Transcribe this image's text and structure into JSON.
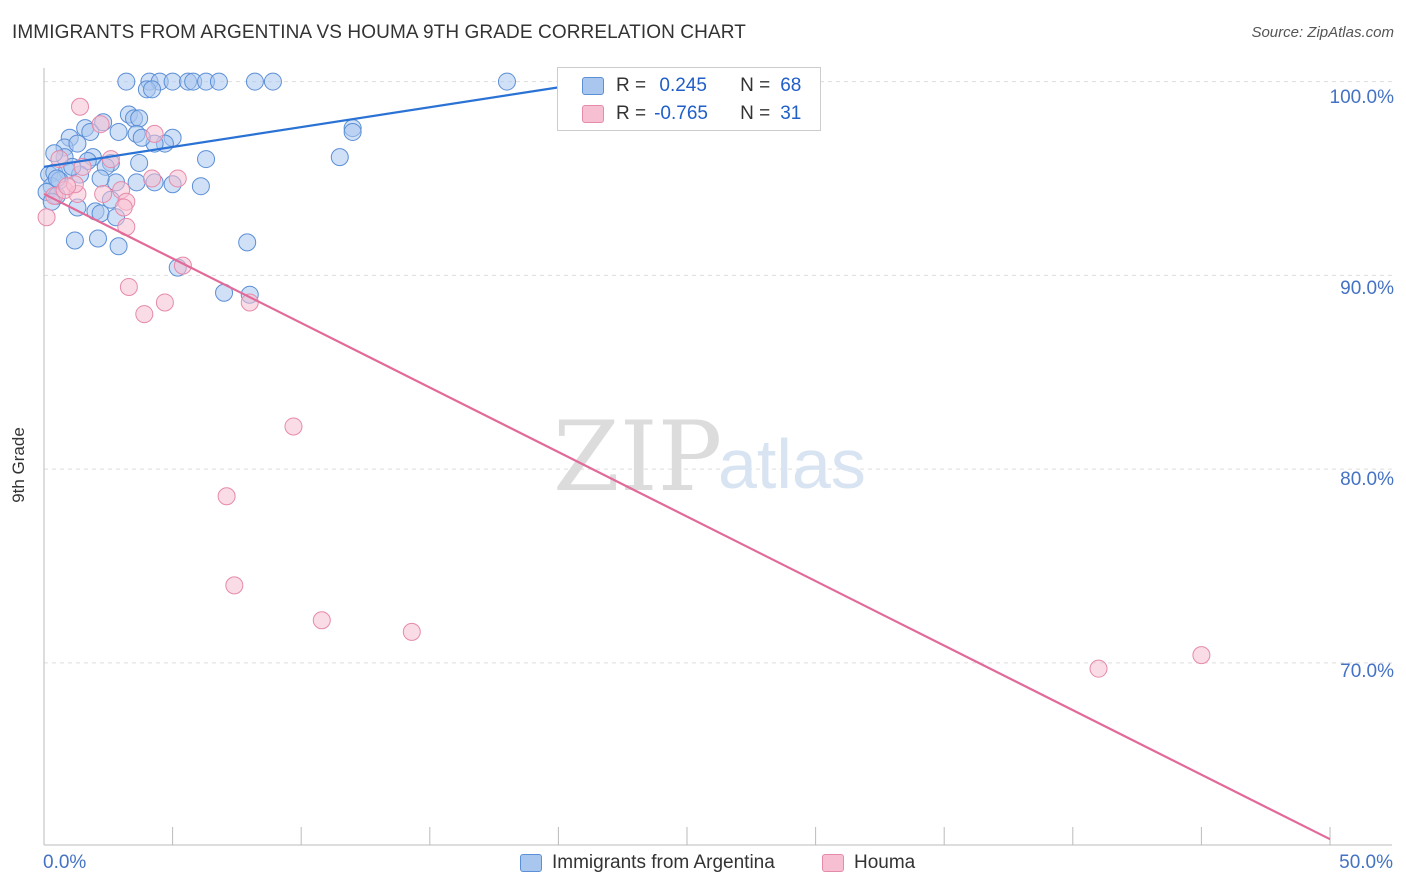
{
  "title": "IMMIGRANTS FROM ARGENTINA VS HOUMA 9TH GRADE CORRELATION CHART",
  "source": "Source: ZipAtlas.com",
  "watermark": {
    "zip": "ZIP",
    "atlas": "atlas"
  },
  "colors": {
    "blue_fill": "#a9c6ee",
    "blue_stroke": "#5b8fd6",
    "blue_line": "#2a72d4",
    "pink_fill": "#f6bfd2",
    "pink_stroke": "#e68aaa",
    "pink_line": "#e26a98",
    "grid": "#dddddd",
    "axis": "#bbbbbb",
    "tick_text": "#4472c4"
  },
  "stats": {
    "r_label": "R =",
    "n_label": "N =",
    "series1": {
      "r": " 0.245",
      "n": "68"
    },
    "series2": {
      "r": "-0.765",
      "n": "31"
    }
  },
  "legend": {
    "series1": "Immigrants from Argentina",
    "series2": "Houma"
  },
  "chart_data": {
    "type": "scatter",
    "title": "IMMIGRANTS FROM ARGENTINA VS HOUMA 9TH GRADE CORRELATION CHART",
    "xlabel": "",
    "ylabel": "9th Grade",
    "xlim": [
      0,
      50
    ],
    "ylim": [
      60.6,
      100.7
    ],
    "x_tick_labels": {
      "left": "0.0%",
      "right": "50.0%"
    },
    "y_ticks": [
      {
        "value": 100,
        "label": "100.0%"
      },
      {
        "value": 90,
        "label": "90.0%"
      },
      {
        "value": 80,
        "label": "80.0%"
      },
      {
        "value": 70,
        "label": "70.0%"
      }
    ],
    "grid": true,
    "series": [
      {
        "name": "Immigrants from Argentina",
        "color": "blue",
        "trend": {
          "x": [
            0.0,
            20.0
          ],
          "y": [
            95.6,
            99.7
          ]
        },
        "points": [
          [
            3.2,
            100.0
          ],
          [
            4.1,
            100.0
          ],
          [
            4.5,
            100.0
          ],
          [
            5.0,
            100.0
          ],
          [
            5.6,
            100.0
          ],
          [
            5.8,
            100.0
          ],
          [
            6.3,
            100.0
          ],
          [
            6.8,
            100.0
          ],
          [
            8.2,
            100.0
          ],
          [
            8.9,
            100.0
          ],
          [
            18.0,
            100.0
          ],
          [
            4.0,
            99.6
          ],
          [
            4.2,
            99.6
          ],
          [
            3.3,
            98.3
          ],
          [
            3.5,
            98.1
          ],
          [
            3.7,
            98.1
          ],
          [
            2.3,
            97.9
          ],
          [
            1.6,
            97.6
          ],
          [
            1.8,
            97.4
          ],
          [
            2.9,
            97.4
          ],
          [
            3.6,
            97.3
          ],
          [
            1.0,
            97.1
          ],
          [
            5.0,
            97.1
          ],
          [
            4.7,
            96.8
          ],
          [
            0.8,
            96.6
          ],
          [
            1.3,
            96.8
          ],
          [
            0.8,
            96.1
          ],
          [
            1.9,
            96.1
          ],
          [
            11.5,
            96.1
          ],
          [
            12.0,
            97.6
          ],
          [
            12.0,
            97.4
          ],
          [
            6.3,
            96.0
          ],
          [
            4.3,
            96.8
          ],
          [
            3.8,
            97.1
          ],
          [
            1.7,
            95.9
          ],
          [
            2.6,
            95.8
          ],
          [
            3.7,
            95.8
          ],
          [
            2.4,
            95.6
          ],
          [
            0.2,
            95.2
          ],
          [
            0.4,
            95.3
          ],
          [
            0.9,
            95.4
          ],
          [
            1.4,
            95.2
          ],
          [
            3.6,
            94.8
          ],
          [
            4.3,
            94.8
          ],
          [
            5.0,
            94.7
          ],
          [
            2.8,
            94.8
          ],
          [
            6.1,
            94.6
          ],
          [
            0.3,
            94.6
          ],
          [
            0.1,
            94.3
          ],
          [
            0.5,
            94.1
          ],
          [
            0.3,
            93.8
          ],
          [
            1.3,
            93.5
          ],
          [
            2.6,
            93.9
          ],
          [
            2.0,
            93.3
          ],
          [
            2.2,
            93.2
          ],
          [
            2.8,
            93.0
          ],
          [
            0.6,
            94.9
          ],
          [
            1.2,
            91.8
          ],
          [
            2.1,
            91.9
          ],
          [
            2.9,
            91.5
          ],
          [
            7.9,
            91.7
          ],
          [
            5.2,
            90.4
          ],
          [
            7.0,
            89.1
          ],
          [
            8.0,
            89.0
          ],
          [
            0.5,
            95.0
          ],
          [
            1.1,
            95.6
          ],
          [
            2.2,
            95.0
          ],
          [
            0.4,
            96.3
          ]
        ]
      },
      {
        "name": "Houma",
        "color": "pink",
        "trend": {
          "x": [
            0.0,
            50.0
          ],
          "y": [
            94.2,
            60.9
          ]
        },
        "points": [
          [
            0.1,
            93.0
          ],
          [
            0.4,
            94.1
          ],
          [
            0.8,
            94.4
          ],
          [
            1.3,
            94.2
          ],
          [
            1.2,
            94.7
          ],
          [
            0.6,
            96.0
          ],
          [
            1.5,
            95.6
          ],
          [
            2.2,
            97.8
          ],
          [
            1.4,
            98.7
          ],
          [
            2.6,
            96.0
          ],
          [
            3.0,
            94.4
          ],
          [
            3.2,
            93.8
          ],
          [
            2.3,
            94.2
          ],
          [
            4.2,
            95.0
          ],
          [
            5.2,
            95.0
          ],
          [
            4.3,
            97.3
          ],
          [
            3.1,
            93.5
          ],
          [
            3.2,
            92.5
          ],
          [
            3.3,
            89.4
          ],
          [
            3.9,
            88.0
          ],
          [
            4.7,
            88.6
          ],
          [
            5.4,
            90.5
          ],
          [
            8.0,
            88.6
          ],
          [
            9.7,
            82.2
          ],
          [
            7.1,
            78.6
          ],
          [
            7.4,
            74.0
          ],
          [
            10.8,
            72.2
          ],
          [
            14.3,
            71.6
          ],
          [
            41.0,
            69.7
          ],
          [
            45.0,
            70.4
          ],
          [
            0.9,
            94.6
          ]
        ]
      }
    ]
  }
}
